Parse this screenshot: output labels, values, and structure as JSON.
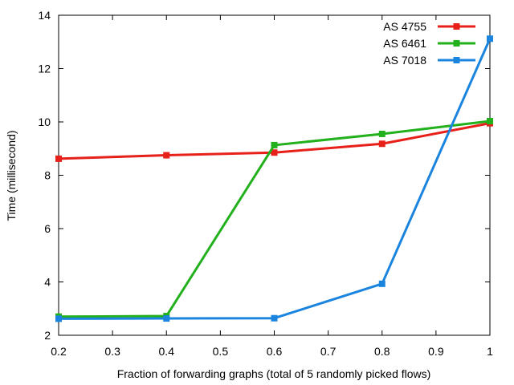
{
  "chart_data": {
    "type": "line",
    "title": "",
    "xlabel": "Fraction of forwarding graphs (total of 5 randomly picked flows)",
    "ylabel": "Time (millisecond)",
    "xlim": [
      0.2,
      1.0
    ],
    "ylim": [
      2,
      14
    ],
    "xticks": [
      "0.2",
      "0.3",
      "0.4",
      "0.5",
      "0.6",
      "0.7",
      "0.8",
      "0.9",
      "1"
    ],
    "yticks": [
      "2",
      "4",
      "6",
      "8",
      "10",
      "12",
      "14"
    ],
    "grid": false,
    "legend_position": "top-right",
    "x": [
      0.2,
      0.4,
      0.6,
      0.8,
      1.0
    ],
    "series": [
      {
        "name": "AS 4755",
        "color": "#e8201a",
        "values": [
          8.62,
          8.75,
          8.85,
          9.18,
          9.95
        ]
      },
      {
        "name": "AS 6461",
        "color": "#22b01c",
        "values": [
          2.7,
          2.72,
          9.13,
          9.55,
          10.03
        ]
      },
      {
        "name": "AS 7018",
        "color": "#1a84de",
        "values": [
          2.62,
          2.63,
          2.64,
          3.93,
          13.12
        ]
      }
    ]
  }
}
